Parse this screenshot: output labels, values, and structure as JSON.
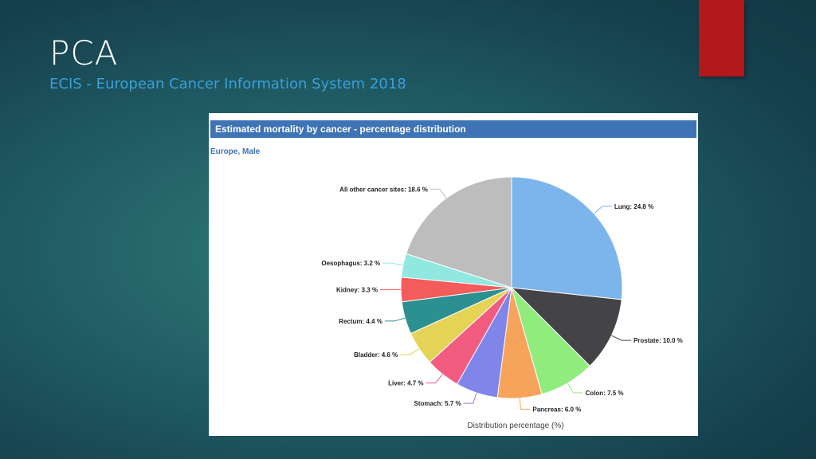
{
  "slide": {
    "title": "PCA",
    "subtitle": "ECIS - European Cancer Information System 2018"
  },
  "colors": {
    "accent_red": "#b3181a",
    "header_blue": "#3e73b5",
    "subtitle_blue": "#3aa0d8"
  },
  "chart_data": {
    "type": "pie",
    "title": "Estimated mortality by cancer - percentage distribution",
    "subtitle": "Europe, Male",
    "xlabel": "Distribution percentage (%)",
    "slices": [
      {
        "label": "Lung: 24.8 %",
        "value": 24.8,
        "color": "#7cb5ec"
      },
      {
        "label": "Prostate: 10.0 %",
        "value": 10.0,
        "color": "#434348"
      },
      {
        "label": "Colon: 7.5 %",
        "value": 7.5,
        "color": "#90ed7d"
      },
      {
        "label": "Pancreas: 6.0 %",
        "value": 6.0,
        "color": "#f7a35c"
      },
      {
        "label": "Stomach: 5.7 %",
        "value": 5.7,
        "color": "#8085e9"
      },
      {
        "label": "Liver: 4.7 %",
        "value": 4.7,
        "color": "#f15c80"
      },
      {
        "label": "Bladder: 4.6 %",
        "value": 4.6,
        "color": "#e4d354"
      },
      {
        "label": "Rectum: 4.4 %",
        "value": 4.4,
        "color": "#2b908f"
      },
      {
        "label": "Kidney: 3.3 %",
        "value": 3.3,
        "color": "#f45b5b"
      },
      {
        "label": "Oesophagus: 3.2 %",
        "value": 3.2,
        "color": "#91e8e1"
      },
      {
        "label": "All other cancer sites: 18.6 %",
        "value": 18.6,
        "color": "#bdbdbd"
      }
    ]
  }
}
